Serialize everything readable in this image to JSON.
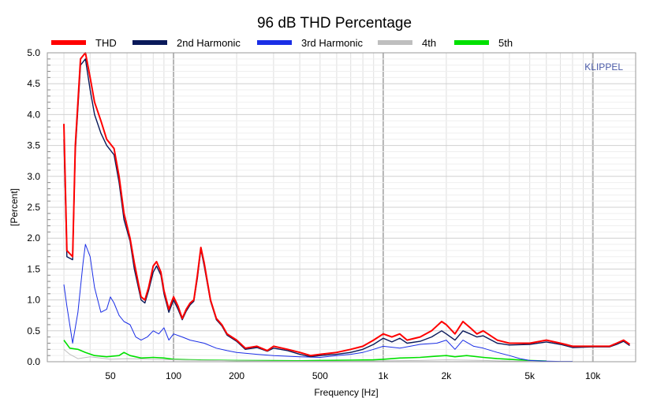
{
  "chart_data": {
    "type": "line",
    "title": "96 dB THD Percentage",
    "xlabel": "Frequency [Hz]",
    "ylabel": "[Percent]",
    "x_scale": "log",
    "xlim": [
      25,
      16000
    ],
    "ylim": [
      0,
      5
    ],
    "grid": true,
    "legend_position": "top",
    "watermark": "KLIPPEL",
    "x_ticks": [
      {
        "value": 50,
        "label": "50"
      },
      {
        "value": 100,
        "label": "100"
      },
      {
        "value": 200,
        "label": "200"
      },
      {
        "value": 500,
        "label": "500"
      },
      {
        "value": 1000,
        "label": "1k"
      },
      {
        "value": 2000,
        "label": "2k"
      },
      {
        "value": 5000,
        "label": "5k"
      },
      {
        "value": 10000,
        "label": "10k"
      }
    ],
    "y_ticks": [
      "0.0",
      "0.5",
      "1.0",
      "1.5",
      "2.0",
      "2.5",
      "3.0",
      "3.5",
      "4.0",
      "4.5",
      "5.0"
    ],
    "series": [
      {
        "name": "THD",
        "color": "#ff0000",
        "points": [
          [
            30,
            3.85
          ],
          [
            31,
            1.8
          ],
          [
            33,
            1.7
          ],
          [
            34,
            3.5
          ],
          [
            36,
            4.9
          ],
          [
            38,
            5.0
          ],
          [
            40,
            4.6
          ],
          [
            42,
            4.2
          ],
          [
            45,
            3.9
          ],
          [
            48,
            3.6
          ],
          [
            52,
            3.45
          ],
          [
            55,
            3.0
          ],
          [
            58,
            2.4
          ],
          [
            62,
            2.0
          ],
          [
            65,
            1.6
          ],
          [
            70,
            1.05
          ],
          [
            73,
            1.0
          ],
          [
            76,
            1.2
          ],
          [
            80,
            1.55
          ],
          [
            83,
            1.62
          ],
          [
            87,
            1.45
          ],
          [
            90,
            1.15
          ],
          [
            95,
            0.85
          ],
          [
            100,
            1.05
          ],
          [
            105,
            0.9
          ],
          [
            110,
            0.7
          ],
          [
            115,
            0.85
          ],
          [
            120,
            0.95
          ],
          [
            125,
            1.0
          ],
          [
            130,
            1.4
          ],
          [
            135,
            1.85
          ],
          [
            140,
            1.6
          ],
          [
            150,
            1.0
          ],
          [
            160,
            0.7
          ],
          [
            170,
            0.6
          ],
          [
            180,
            0.45
          ],
          [
            200,
            0.35
          ],
          [
            220,
            0.22
          ],
          [
            250,
            0.25
          ],
          [
            280,
            0.18
          ],
          [
            300,
            0.25
          ],
          [
            350,
            0.2
          ],
          [
            400,
            0.15
          ],
          [
            450,
            0.1
          ],
          [
            500,
            0.12
          ],
          [
            600,
            0.15
          ],
          [
            700,
            0.2
          ],
          [
            800,
            0.25
          ],
          [
            900,
            0.35
          ],
          [
            1000,
            0.45
          ],
          [
            1100,
            0.4
          ],
          [
            1200,
            0.45
          ],
          [
            1300,
            0.35
          ],
          [
            1500,
            0.4
          ],
          [
            1700,
            0.5
          ],
          [
            1900,
            0.65
          ],
          [
            2000,
            0.6
          ],
          [
            2200,
            0.45
          ],
          [
            2400,
            0.65
          ],
          [
            2600,
            0.55
          ],
          [
            2800,
            0.45
          ],
          [
            3000,
            0.5
          ],
          [
            3500,
            0.35
          ],
          [
            4000,
            0.3
          ],
          [
            5000,
            0.3
          ],
          [
            6000,
            0.35
          ],
          [
            7000,
            0.3
          ],
          [
            8000,
            0.25
          ],
          [
            10000,
            0.25
          ],
          [
            12000,
            0.25
          ],
          [
            13000,
            0.3
          ],
          [
            14000,
            0.35
          ],
          [
            15000,
            0.28
          ]
        ]
      },
      {
        "name": "2nd Harmonic",
        "color": "#0a1a5a",
        "points": [
          [
            30,
            3.6
          ],
          [
            31,
            1.7
          ],
          [
            33,
            1.65
          ],
          [
            34,
            3.4
          ],
          [
            36,
            4.8
          ],
          [
            38,
            4.9
          ],
          [
            40,
            4.4
          ],
          [
            42,
            4.0
          ],
          [
            45,
            3.7
          ],
          [
            48,
            3.5
          ],
          [
            52,
            3.35
          ],
          [
            55,
            2.9
          ],
          [
            58,
            2.3
          ],
          [
            62,
            1.95
          ],
          [
            65,
            1.5
          ],
          [
            70,
            1.0
          ],
          [
            73,
            0.95
          ],
          [
            76,
            1.15
          ],
          [
            80,
            1.45
          ],
          [
            83,
            1.55
          ],
          [
            87,
            1.4
          ],
          [
            90,
            1.1
          ],
          [
            95,
            0.8
          ],
          [
            100,
            1.0
          ],
          [
            105,
            0.85
          ],
          [
            110,
            0.68
          ],
          [
            115,
            0.82
          ],
          [
            120,
            0.92
          ],
          [
            125,
            0.98
          ],
          [
            130,
            1.35
          ],
          [
            135,
            1.82
          ],
          [
            140,
            1.55
          ],
          [
            150,
            0.98
          ],
          [
            160,
            0.68
          ],
          [
            170,
            0.58
          ],
          [
            180,
            0.43
          ],
          [
            200,
            0.33
          ],
          [
            220,
            0.2
          ],
          [
            250,
            0.23
          ],
          [
            280,
            0.17
          ],
          [
            300,
            0.22
          ],
          [
            350,
            0.18
          ],
          [
            400,
            0.12
          ],
          [
            450,
            0.08
          ],
          [
            500,
            0.1
          ],
          [
            600,
            0.12
          ],
          [
            700,
            0.15
          ],
          [
            800,
            0.2
          ],
          [
            900,
            0.28
          ],
          [
            1000,
            0.38
          ],
          [
            1100,
            0.32
          ],
          [
            1200,
            0.38
          ],
          [
            1300,
            0.3
          ],
          [
            1500,
            0.33
          ],
          [
            1700,
            0.4
          ],
          [
            1900,
            0.5
          ],
          [
            2000,
            0.45
          ],
          [
            2200,
            0.35
          ],
          [
            2400,
            0.5
          ],
          [
            2600,
            0.45
          ],
          [
            2800,
            0.4
          ],
          [
            3000,
            0.42
          ],
          [
            3500,
            0.3
          ],
          [
            4000,
            0.27
          ],
          [
            5000,
            0.28
          ],
          [
            6000,
            0.32
          ],
          [
            7000,
            0.28
          ],
          [
            8000,
            0.23
          ],
          [
            10000,
            0.24
          ],
          [
            12000,
            0.24
          ],
          [
            13000,
            0.28
          ],
          [
            14000,
            0.33
          ],
          [
            15000,
            0.26
          ]
        ]
      },
      {
        "name": "3rd Harmonic",
        "color": "#1a2ee6",
        "points": [
          [
            30,
            1.25
          ],
          [
            31,
            0.9
          ],
          [
            33,
            0.3
          ],
          [
            35,
            0.8
          ],
          [
            37,
            1.6
          ],
          [
            38,
            1.9
          ],
          [
            40,
            1.7
          ],
          [
            42,
            1.2
          ],
          [
            45,
            0.8
          ],
          [
            48,
            0.85
          ],
          [
            50,
            1.05
          ],
          [
            52,
            0.95
          ],
          [
            55,
            0.75
          ],
          [
            58,
            0.65
          ],
          [
            62,
            0.6
          ],
          [
            66,
            0.4
          ],
          [
            70,
            0.35
          ],
          [
            75,
            0.4
          ],
          [
            80,
            0.5
          ],
          [
            85,
            0.45
          ],
          [
            90,
            0.55
          ],
          [
            95,
            0.35
          ],
          [
            100,
            0.45
          ],
          [
            110,
            0.4
          ],
          [
            120,
            0.35
          ],
          [
            140,
            0.3
          ],
          [
            160,
            0.22
          ],
          [
            180,
            0.18
          ],
          [
            200,
            0.15
          ],
          [
            250,
            0.12
          ],
          [
            300,
            0.1
          ],
          [
            400,
            0.08
          ],
          [
            500,
            0.07
          ],
          [
            600,
            0.1
          ],
          [
            700,
            0.12
          ],
          [
            800,
            0.15
          ],
          [
            900,
            0.2
          ],
          [
            1000,
            0.25
          ],
          [
            1200,
            0.22
          ],
          [
            1500,
            0.28
          ],
          [
            1800,
            0.3
          ],
          [
            2000,
            0.35
          ],
          [
            2200,
            0.2
          ],
          [
            2400,
            0.35
          ],
          [
            2700,
            0.25
          ],
          [
            3000,
            0.22
          ],
          [
            3500,
            0.15
          ],
          [
            4000,
            0.1
          ],
          [
            4500,
            0.05
          ],
          [
            5000,
            0.02
          ],
          [
            6000,
            0.01
          ],
          [
            7000,
            0.005
          ],
          [
            8000,
            0.005
          ]
        ]
      },
      {
        "name": "4th",
        "color": "#bfbfbf",
        "points": [
          [
            30,
            0.2
          ],
          [
            32,
            0.12
          ],
          [
            35,
            0.05
          ],
          [
            40,
            0.08
          ],
          [
            50,
            0.04
          ],
          [
            60,
            0.05
          ],
          [
            80,
            0.04
          ],
          [
            100,
            0.03
          ],
          [
            150,
            0.02
          ],
          [
            200,
            0.015
          ],
          [
            300,
            0.01
          ],
          [
            500,
            0.008
          ],
          [
            800,
            0.01
          ],
          [
            1000,
            0.015
          ],
          [
            1500,
            0.02
          ],
          [
            2000,
            0.03
          ],
          [
            3000,
            0.02
          ],
          [
            4000,
            0.01
          ],
          [
            6000,
            0.005
          ],
          [
            8000,
            0.003
          ]
        ]
      },
      {
        "name": "5th",
        "color": "#00e000",
        "points": [
          [
            30,
            0.35
          ],
          [
            32,
            0.22
          ],
          [
            35,
            0.2
          ],
          [
            38,
            0.15
          ],
          [
            42,
            0.1
          ],
          [
            48,
            0.08
          ],
          [
            55,
            0.1
          ],
          [
            58,
            0.15
          ],
          [
            62,
            0.1
          ],
          [
            70,
            0.06
          ],
          [
            80,
            0.07
          ],
          [
            90,
            0.06
          ],
          [
            100,
            0.04
          ],
          [
            120,
            0.03
          ],
          [
            150,
            0.025
          ],
          [
            200,
            0.02
          ],
          [
            300,
            0.018
          ],
          [
            400,
            0.015
          ],
          [
            500,
            0.02
          ],
          [
            700,
            0.025
          ],
          [
            900,
            0.03
          ],
          [
            1000,
            0.04
          ],
          [
            1200,
            0.06
          ],
          [
            1500,
            0.07
          ],
          [
            1800,
            0.09
          ],
          [
            2000,
            0.1
          ],
          [
            2200,
            0.08
          ],
          [
            2500,
            0.1
          ],
          [
            3000,
            0.07
          ],
          [
            3500,
            0.05
          ],
          [
            4000,
            0.04
          ],
          [
            5000,
            0.02
          ],
          [
            6000,
            0.01
          ]
        ]
      }
    ]
  }
}
